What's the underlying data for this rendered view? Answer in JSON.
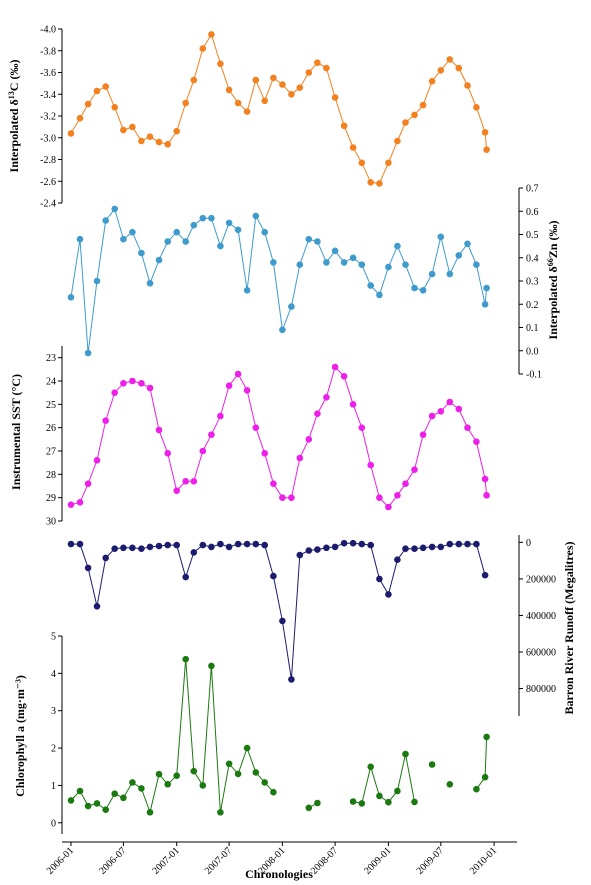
{
  "chart_data": {
    "type": "line",
    "xlabel": "Chronologies",
    "x_ticks": [
      "2006-01",
      "2006-07",
      "2007-01",
      "2007-07",
      "2008-01",
      "2008-07",
      "2009-01",
      "2009-07",
      "2010-01"
    ],
    "x_range": [
      "2005-12-15",
      "2010-01-25"
    ],
    "panels": [
      {
        "id": "d13c",
        "ylabel_prefix": "Interpolated δ",
        "ylabel_sup": "13",
        "ylabel_suffix": "C (‰)",
        "axis_side": "left",
        "inverted": true,
        "ylim": [
          -2.4,
          -4.0
        ],
        "y_ticks": [
          "-4.0",
          "-3.8",
          "-3.6",
          "-3.4",
          "-3.2",
          "-3.0",
          "-2.8",
          "-2.6",
          "-2.4"
        ],
        "y_tick_values": [
          -4.0,
          -3.8,
          -3.6,
          -3.4,
          -3.2,
          -3.0,
          -2.8,
          -2.6,
          -2.4
        ],
        "color": "#F4811F",
        "x": [
          "2006-01",
          "2006-02",
          "2006-03",
          "2006-04",
          "2006-05",
          "2006-06",
          "2006-07",
          "2006-08",
          "2006-09",
          "2006-10",
          "2006-11",
          "2006-12",
          "2007-01",
          "2007-02",
          "2007-03",
          "2007-04",
          "2007-05",
          "2007-06",
          "2007-07",
          "2007-08",
          "2007-09",
          "2007-10",
          "2007-11",
          "2007-12",
          "2008-01",
          "2008-02",
          "2008-03",
          "2008-04",
          "2008-05",
          "2008-06",
          "2008-07",
          "2008-08",
          "2008-09",
          "2008-10",
          "2008-11",
          "2008-12",
          "2009-01",
          "2009-02",
          "2009-03",
          "2009-04",
          "2009-05",
          "2009-06",
          "2009-07",
          "2009-08",
          "2009-09",
          "2009-10",
          "2009-11",
          "2009-12"
        ],
        "values": [
          -3.04,
          -3.18,
          -3.31,
          -3.43,
          -3.47,
          -3.28,
          -3.07,
          -3.1,
          -2.97,
          -3.01,
          -2.96,
          -2.94,
          -3.06,
          -3.32,
          -3.53,
          -3.82,
          -3.95,
          -3.68,
          -3.44,
          -3.32,
          -3.24,
          -3.53,
          -3.34,
          -3.55,
          -3.49,
          -3.4,
          -3.46,
          -3.6,
          -3.69,
          -3.64,
          -3.37,
          -3.11,
          -2.91,
          -2.77,
          -2.59,
          -2.58,
          -2.77,
          -2.97,
          -3.14,
          -3.21,
          -3.3,
          -3.52,
          -3.62,
          -3.72,
          -3.64,
          -3.48,
          -3.28,
          -3.05
        ],
        "extra_points": [
          {
            "x": "2009-12-20",
            "value": -2.89
          }
        ]
      },
      {
        "id": "d66zn",
        "ylabel_prefix": "Interpolated δ",
        "ylabel_sup": "66",
        "ylabel_suffix": "Zn (‰)",
        "axis_side": "right",
        "inverted": false,
        "ylim": [
          -0.1,
          0.7
        ],
        "y_ticks": [
          "-0.1",
          "0.0",
          "0.1",
          "0.2",
          "0.3",
          "0.4",
          "0.5",
          "0.6",
          "0.7"
        ],
        "y_tick_values": [
          -0.1,
          0.0,
          0.1,
          0.2,
          0.3,
          0.4,
          0.5,
          0.6,
          0.7
        ],
        "color": "#3F9BCB",
        "x": [
          "2006-01",
          "2006-02",
          "2006-03",
          "2006-04",
          "2006-05",
          "2006-06",
          "2006-07",
          "2006-08",
          "2006-09",
          "2006-10",
          "2006-11",
          "2006-12",
          "2007-01",
          "2007-02",
          "2007-03",
          "2007-04",
          "2007-05",
          "2007-06",
          "2007-07",
          "2007-08",
          "2007-09",
          "2007-10",
          "2007-11",
          "2007-12",
          "2008-01",
          "2008-02",
          "2008-03",
          "2008-04",
          "2008-05",
          "2008-06",
          "2008-07",
          "2008-08",
          "2008-09",
          "2008-10",
          "2008-11",
          "2008-12",
          "2009-01",
          "2009-02",
          "2009-03",
          "2009-04",
          "2009-05",
          "2009-06",
          "2009-07",
          "2009-08",
          "2009-09",
          "2009-10",
          "2009-11",
          "2009-12"
        ],
        "values": [
          0.23,
          0.48,
          -0.01,
          0.3,
          0.56,
          0.61,
          0.48,
          0.51,
          0.42,
          0.29,
          0.39,
          0.47,
          0.51,
          0.47,
          0.54,
          0.57,
          0.57,
          0.45,
          0.55,
          0.52,
          0.26,
          0.58,
          0.51,
          0.38,
          0.09,
          0.19,
          0.37,
          0.48,
          0.47,
          0.38,
          0.43,
          0.38,
          0.4,
          0.37,
          0.28,
          0.24,
          0.36,
          0.45,
          0.37,
          0.27,
          0.26,
          0.33,
          0.49,
          0.33,
          0.41,
          0.46,
          0.37,
          0.2
        ],
        "extra_points": [
          {
            "x": "2009-12-20",
            "value": 0.27
          }
        ]
      },
      {
        "id": "sst",
        "ylabel": "Instrumental SST (°C)",
        "axis_side": "left",
        "inverted": true,
        "ylim": [
          30,
          22.5
        ],
        "y_ticks": [
          "23",
          "24",
          "25",
          "26",
          "27",
          "28",
          "29",
          "30"
        ],
        "y_tick_values": [
          23,
          24,
          25,
          26,
          27,
          28,
          29,
          30
        ],
        "color": "#EE1FE8",
        "x": [
          "2006-01",
          "2006-02",
          "2006-03",
          "2006-04",
          "2006-05",
          "2006-06",
          "2006-07",
          "2006-08",
          "2006-09",
          "2006-10",
          "2006-11",
          "2006-12",
          "2007-01",
          "2007-02",
          "2007-03",
          "2007-04",
          "2007-05",
          "2007-06",
          "2007-07",
          "2007-08",
          "2007-09",
          "2007-10",
          "2007-11",
          "2007-12",
          "2008-01",
          "2008-02",
          "2008-03",
          "2008-04",
          "2008-05",
          "2008-06",
          "2008-07",
          "2008-08",
          "2008-09",
          "2008-10",
          "2008-11",
          "2008-12",
          "2009-01",
          "2009-02",
          "2009-03",
          "2009-04",
          "2009-05",
          "2009-06",
          "2009-07",
          "2009-08",
          "2009-09",
          "2009-10",
          "2009-11",
          "2009-12"
        ],
        "values": [
          29.3,
          29.2,
          28.4,
          27.4,
          25.7,
          24.5,
          24.1,
          24.0,
          24.1,
          24.3,
          26.1,
          27.1,
          28.7,
          28.3,
          28.3,
          27.0,
          26.3,
          25.5,
          24.2,
          23.7,
          24.4,
          26.0,
          27.1,
          28.4,
          29.0,
          29.0,
          27.3,
          26.5,
          25.4,
          24.7,
          23.4,
          23.8,
          25.0,
          26.0,
          27.6,
          29.0,
          29.4,
          28.9,
          28.4,
          27.8,
          26.3,
          25.5,
          25.3,
          24.9,
          25.2,
          26.0,
          26.6,
          28.2
        ],
        "extra_points": [
          {
            "x": "2009-12-20",
            "value": 28.9
          }
        ]
      },
      {
        "id": "runoff",
        "ylabel": "Barron River Runoff (Megalitres)",
        "axis_side": "right",
        "inverted": true,
        "ylim": [
          950000,
          -40000
        ],
        "y_ticks": [
          "0",
          "200000",
          "400000",
          "600000",
          "800000"
        ],
        "y_tick_values": [
          0,
          200000,
          400000,
          600000,
          800000
        ],
        "color": "#1C1C6E",
        "x": [
          "2006-01",
          "2006-02",
          "2006-03",
          "2006-04",
          "2006-05",
          "2006-06",
          "2006-07",
          "2006-08",
          "2006-09",
          "2006-10",
          "2006-11",
          "2006-12",
          "2007-01",
          "2007-02",
          "2007-03",
          "2007-04",
          "2007-05",
          "2007-06",
          "2007-07",
          "2007-08",
          "2007-09",
          "2007-10",
          "2007-11",
          "2007-12",
          "2008-01",
          "2008-02",
          "2008-03",
          "2008-04",
          "2008-05",
          "2008-06",
          "2008-07",
          "2008-08",
          "2008-09",
          "2008-10",
          "2008-11",
          "2008-12",
          "2009-01",
          "2009-02",
          "2009-03",
          "2009-04",
          "2009-05",
          "2009-06",
          "2009-07",
          "2009-08",
          "2009-09",
          "2009-10",
          "2009-11",
          "2009-12"
        ],
        "values": [
          10000,
          10000,
          140000,
          350000,
          85000,
          35000,
          30000,
          30000,
          35000,
          25000,
          20000,
          15000,
          15000,
          190000,
          55000,
          15000,
          25000,
          10000,
          25000,
          10000,
          10000,
          10000,
          15000,
          185000,
          430000,
          750000,
          70000,
          45000,
          40000,
          30000,
          25000,
          5000,
          5000,
          10000,
          15000,
          200000,
          285000,
          95000,
          35000,
          35000,
          30000,
          25000,
          25000,
          10000,
          10000,
          10000,
          10000,
          180000
        ],
        "extra_points": []
      },
      {
        "id": "chla",
        "ylabel": "Chlorophyll a (mg·m⁻³)",
        "axis_side": "left",
        "inverted": false,
        "ylim": [
          -0.3,
          5
        ],
        "y_ticks": [
          "0",
          "1",
          "2",
          "3",
          "4",
          "5"
        ],
        "y_tick_values": [
          0,
          1,
          2,
          3,
          4,
          5
        ],
        "color": "#1A7A10",
        "x": [
          "2006-01",
          "2006-02",
          "2006-03",
          "2006-04",
          "2006-05",
          "2006-06",
          "2006-07",
          "2006-08",
          "2006-09",
          "2006-10",
          "2006-11",
          "2006-12",
          "2007-01",
          "2007-02",
          "2007-03",
          "2007-04",
          "2007-05",
          "2007-06",
          "2007-07",
          "2007-08",
          "2007-09",
          "2007-10",
          "2007-11",
          "2007-12",
          "2008-01",
          "2008-02",
          "2008-03",
          "2008-04",
          "2008-05",
          "2008-06",
          "2008-07",
          "2008-08",
          "2008-09",
          "2008-10",
          "2008-11",
          "2008-12",
          "2009-01",
          "2009-02",
          "2009-03",
          "2009-04",
          "2009-05",
          "2009-06",
          "2009-07",
          "2009-08",
          "2009-09",
          "2009-10",
          "2009-11",
          "2009-12"
        ],
        "values": [
          0.6,
          0.85,
          0.45,
          0.52,
          0.35,
          0.78,
          0.67,
          1.08,
          0.92,
          0.28,
          1.3,
          1.03,
          1.26,
          4.38,
          1.38,
          1.0,
          4.2,
          0.28,
          1.58,
          1.31,
          2.0,
          1.35,
          1.08,
          0.82,
          null,
          null,
          null,
          0.4,
          0.53,
          null,
          null,
          null,
          0.57,
          0.52,
          1.5,
          0.72,
          0.55,
          0.85,
          1.84,
          0.56,
          null,
          1.56,
          null,
          1.03,
          null,
          null,
          0.9,
          1.22
        ],
        "extra_points": [
          {
            "x": "2009-12-20",
            "value": 2.3
          }
        ]
      }
    ]
  }
}
